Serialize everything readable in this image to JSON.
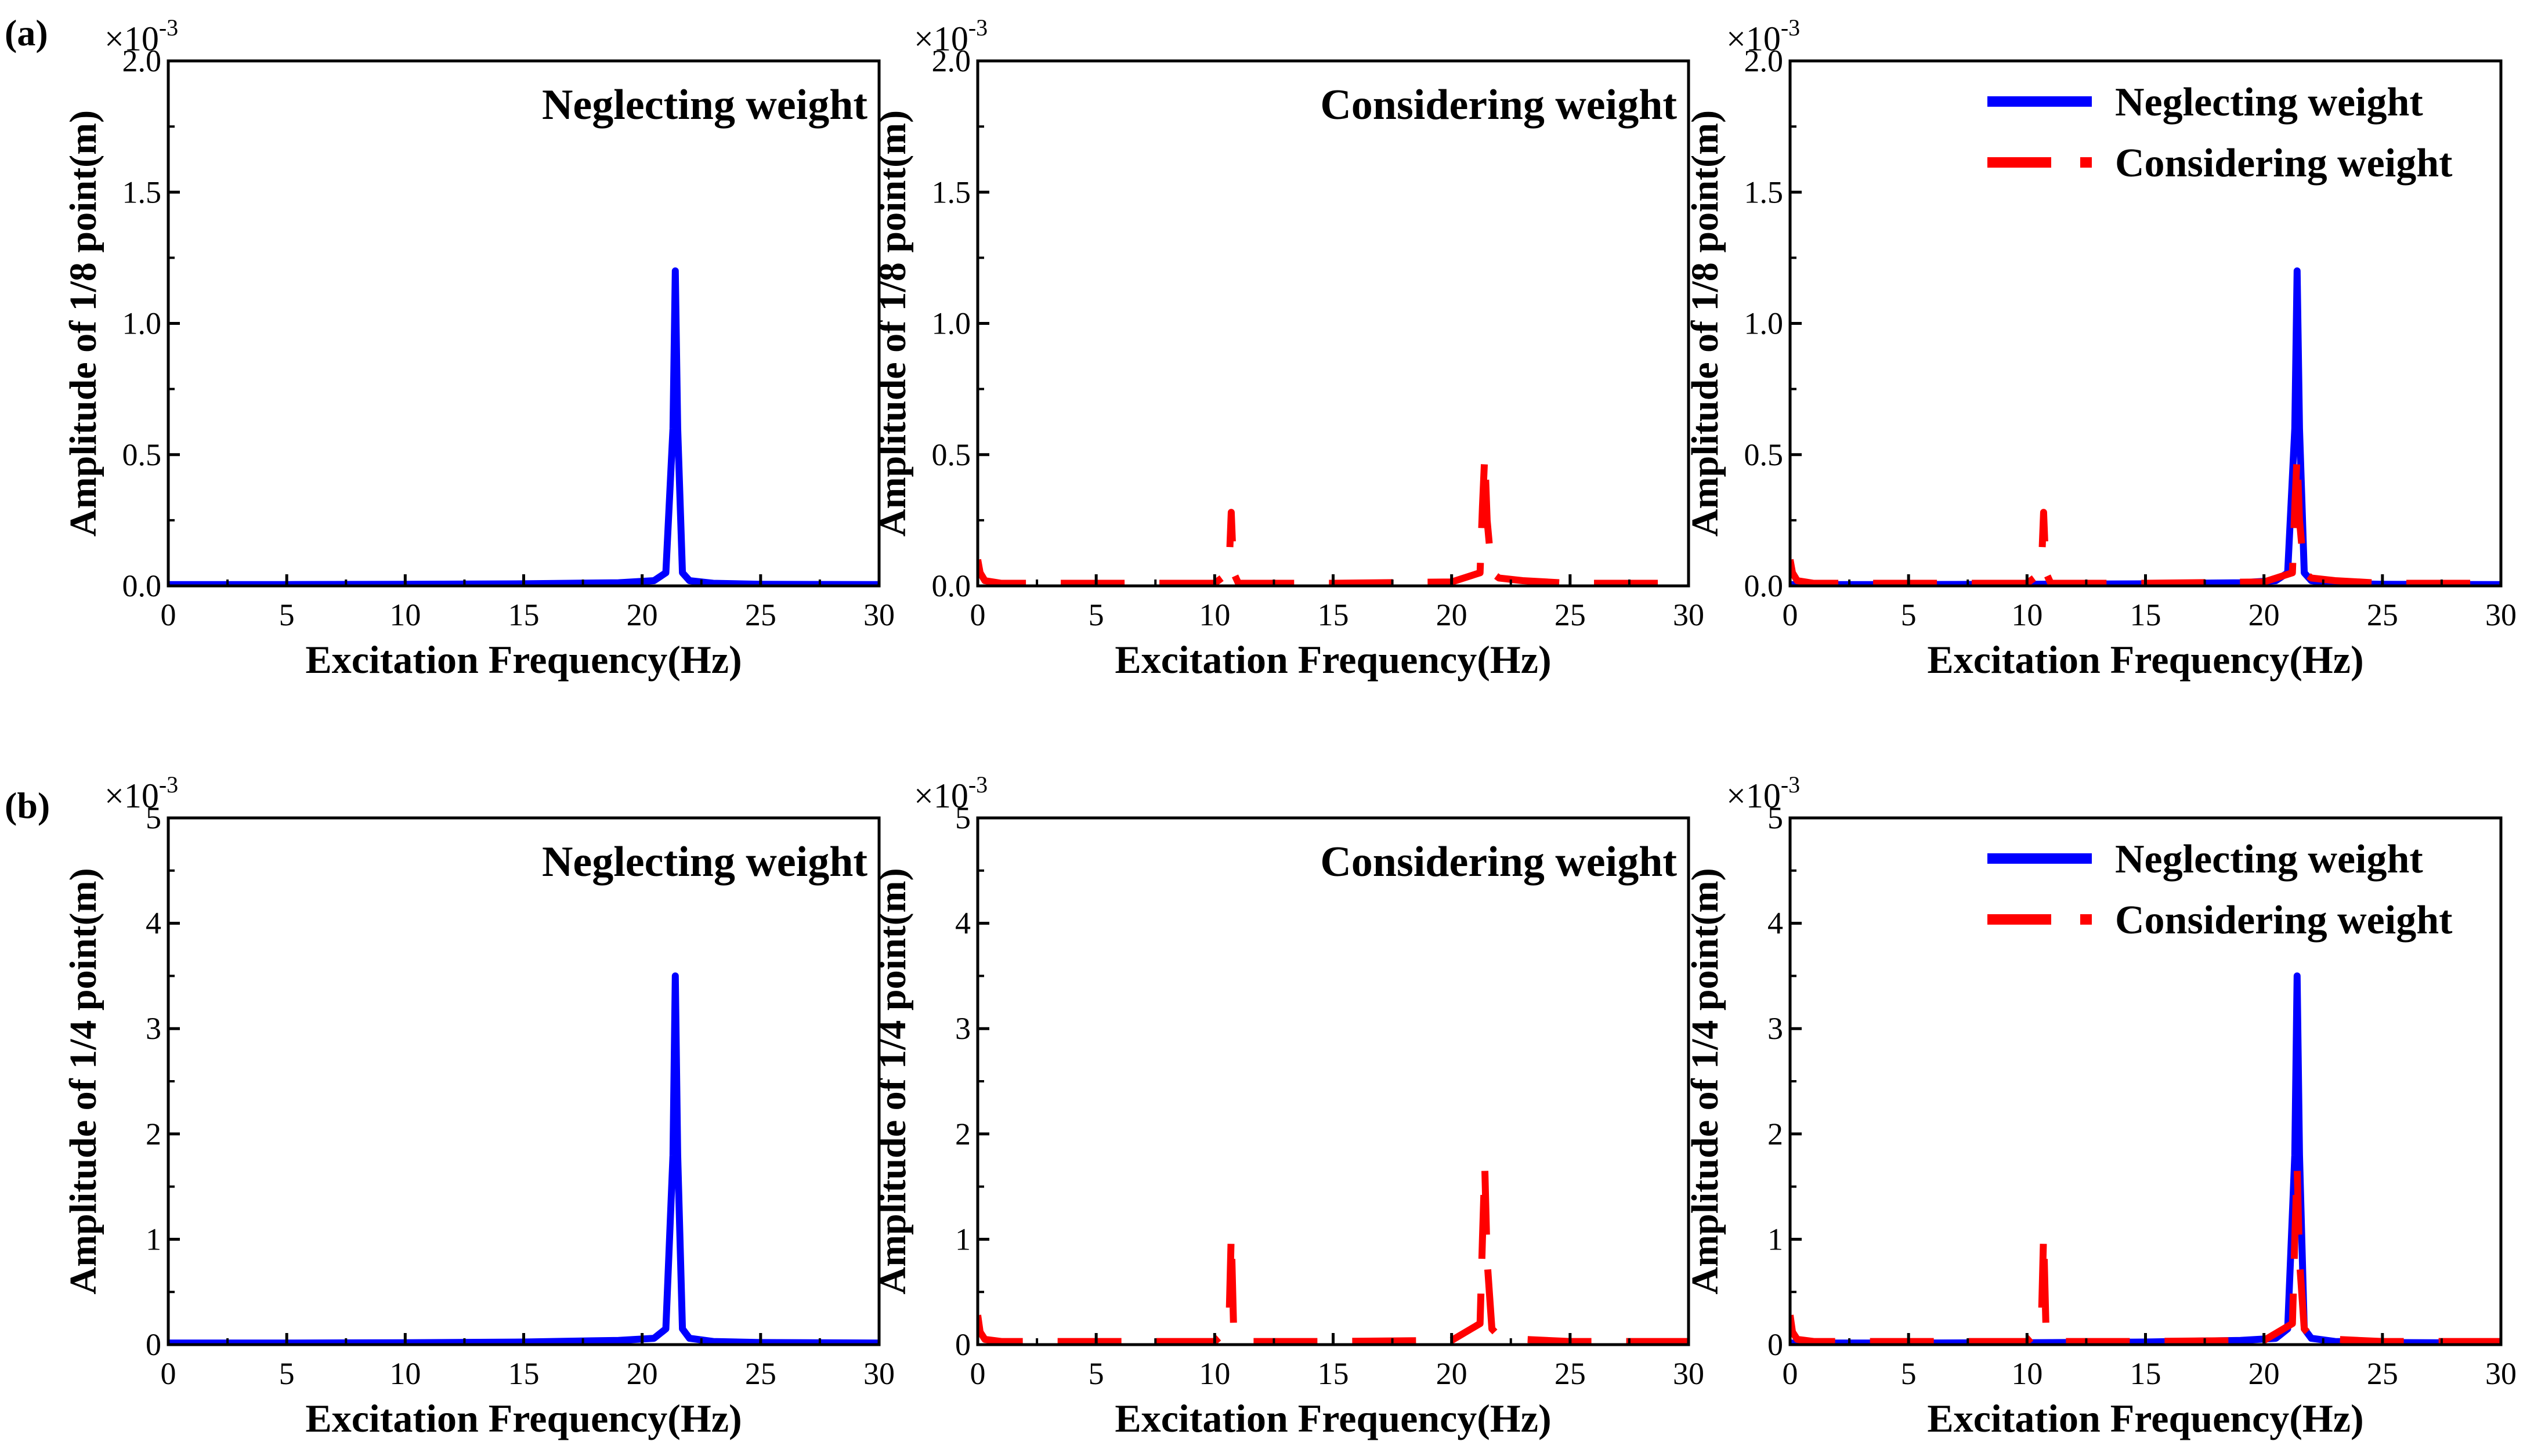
{
  "figure": {
    "row_labels": [
      "(a)",
      "(b)"
    ]
  },
  "series_styles": {
    "Neglecting weight": {
      "color": "#0000ff",
      "dash": "solid"
    },
    "Considering weight": {
      "color": "#ff0000",
      "dash": "dashed"
    }
  },
  "chart_data": [
    {
      "type": "line",
      "row": 0,
      "col": 0,
      "xlabel": "Excitation Frequency(Hz)",
      "ylabel": "Amplitude of 1/8 point(m)",
      "scale_label": "×10",
      "scale_exp": "-3",
      "xlim": [
        0,
        30
      ],
      "ylim": [
        0,
        2.0
      ],
      "xticks": [
        "0",
        "5",
        "10",
        "15",
        "20",
        "25",
        "30"
      ],
      "yticks": [
        "0.0",
        "0.5",
        "1.0",
        "1.5",
        "2.0"
      ],
      "title": "Neglecting weight",
      "series": [
        {
          "name": "Neglecting weight",
          "x": [
            0,
            5,
            10,
            15,
            19,
            20.5,
            21.0,
            21.3,
            21.4,
            21.5,
            21.7,
            22,
            23,
            25,
            30
          ],
          "y": [
            0.005,
            0.005,
            0.006,
            0.008,
            0.012,
            0.02,
            0.05,
            0.6,
            1.2,
            0.6,
            0.05,
            0.02,
            0.01,
            0.006,
            0.005
          ]
        }
      ]
    },
    {
      "type": "line",
      "row": 0,
      "col": 1,
      "xlabel": "Excitation Frequency(Hz)",
      "ylabel": "Amplitude of 1/8 point(m)",
      "scale_label": "×10",
      "scale_exp": "-3",
      "xlim": [
        0,
        30
      ],
      "ylim": [
        0,
        2.0
      ],
      "xticks": [
        "0",
        "5",
        "10",
        "15",
        "20",
        "25",
        "30"
      ],
      "yticks": [
        "0.0",
        "0.5",
        "1.0",
        "1.5",
        "2.0"
      ],
      "title": "Considering weight",
      "series": [
        {
          "name": "Considering weight",
          "x": [
            0,
            0.1,
            0.3,
            1,
            5,
            10,
            10.6,
            10.7,
            10.8,
            11,
            15,
            20,
            21.2,
            21.3,
            21.4,
            21.5,
            21.7,
            22,
            23,
            25,
            30
          ],
          "y": [
            0.1,
            0.05,
            0.02,
            0.01,
            0.01,
            0.01,
            0.05,
            0.28,
            0.05,
            0.01,
            0.01,
            0.015,
            0.05,
            0.3,
            0.5,
            0.25,
            0.05,
            0.03,
            0.02,
            0.01,
            0.01
          ]
        }
      ]
    },
    {
      "type": "line",
      "row": 0,
      "col": 2,
      "xlabel": "Excitation Frequency(Hz)",
      "ylabel": "Amplitude of 1/8 point(m)",
      "scale_label": "×10",
      "scale_exp": "-3",
      "xlim": [
        0,
        30
      ],
      "ylim": [
        0,
        2.0
      ],
      "xticks": [
        "0",
        "5",
        "10",
        "15",
        "20",
        "25",
        "30"
      ],
      "yticks": [
        "0.0",
        "0.5",
        "1.0",
        "1.5",
        "2.0"
      ],
      "legend": "top-right",
      "series": [
        {
          "name": "Neglecting weight",
          "x": [
            0,
            5,
            10,
            15,
            19,
            20.5,
            21.0,
            21.3,
            21.4,
            21.5,
            21.7,
            22,
            23,
            25,
            30
          ],
          "y": [
            0.005,
            0.005,
            0.006,
            0.008,
            0.012,
            0.02,
            0.05,
            0.6,
            1.2,
            0.6,
            0.05,
            0.02,
            0.01,
            0.006,
            0.005
          ]
        },
        {
          "name": "Considering weight",
          "x": [
            0,
            0.1,
            0.3,
            1,
            5,
            10,
            10.6,
            10.7,
            10.8,
            11,
            15,
            20,
            21.2,
            21.3,
            21.4,
            21.5,
            21.7,
            22,
            23,
            25,
            30
          ],
          "y": [
            0.1,
            0.05,
            0.02,
            0.01,
            0.01,
            0.01,
            0.05,
            0.28,
            0.05,
            0.01,
            0.01,
            0.015,
            0.05,
            0.3,
            0.5,
            0.25,
            0.05,
            0.03,
            0.02,
            0.01,
            0.01
          ]
        }
      ]
    },
    {
      "type": "line",
      "row": 1,
      "col": 0,
      "xlabel": "Excitation Frequency(Hz)",
      "ylabel": "Amplitude of 1/4 point(m)",
      "scale_label": "×10",
      "scale_exp": "-3",
      "xlim": [
        0,
        30
      ],
      "ylim": [
        0,
        5
      ],
      "xticks": [
        "0",
        "5",
        "10",
        "15",
        "20",
        "25",
        "30"
      ],
      "yticks": [
        "0",
        "1",
        "2",
        "3",
        "4",
        "5"
      ],
      "title": "Neglecting weight",
      "series": [
        {
          "name": "Neglecting weight",
          "x": [
            0,
            5,
            10,
            15,
            19,
            20.5,
            21.0,
            21.3,
            21.4,
            21.5,
            21.7,
            22,
            23,
            25,
            30
          ],
          "y": [
            0.015,
            0.015,
            0.018,
            0.025,
            0.04,
            0.06,
            0.15,
            1.8,
            3.5,
            1.8,
            0.15,
            0.06,
            0.03,
            0.02,
            0.015
          ]
        }
      ]
    },
    {
      "type": "line",
      "row": 1,
      "col": 1,
      "xlabel": "Excitation Frequency(Hz)",
      "ylabel": "Amplitude of 1/4 point(m)",
      "scale_label": "×10",
      "scale_exp": "-3",
      "xlim": [
        0,
        30
      ],
      "ylim": [
        0,
        5
      ],
      "xticks": [
        "0",
        "5",
        "10",
        "15",
        "20",
        "25",
        "30"
      ],
      "yticks": [
        "0",
        "1",
        "2",
        "3",
        "4",
        "5"
      ],
      "title": "Considering weight",
      "series": [
        {
          "name": "Considering weight",
          "x": [
            0,
            0.1,
            0.3,
            1,
            5,
            10,
            10.6,
            10.7,
            10.8,
            11,
            15,
            20,
            21.2,
            21.3,
            21.4,
            21.5,
            21.7,
            22,
            23,
            25,
            30
          ],
          "y": [
            0.28,
            0.12,
            0.05,
            0.03,
            0.03,
            0.03,
            0.15,
            1.05,
            0.15,
            0.03,
            0.03,
            0.04,
            0.2,
            1.0,
            1.7,
            0.8,
            0.15,
            0.08,
            0.05,
            0.03,
            0.03
          ]
        }
      ]
    },
    {
      "type": "line",
      "row": 1,
      "col": 2,
      "xlabel": "Excitation Frequency(Hz)",
      "ylabel": "Amplitude of 1/4 point(m)",
      "scale_label": "×10",
      "scale_exp": "-3",
      "xlim": [
        0,
        30
      ],
      "ylim": [
        0,
        5
      ],
      "xticks": [
        "0",
        "5",
        "10",
        "15",
        "20",
        "25",
        "30"
      ],
      "yticks": [
        "0",
        "1",
        "2",
        "3",
        "4",
        "5"
      ],
      "legend": "top-right",
      "series": [
        {
          "name": "Neglecting weight",
          "x": [
            0,
            5,
            10,
            15,
            19,
            20.5,
            21.0,
            21.3,
            21.4,
            21.5,
            21.7,
            22,
            23,
            25,
            30
          ],
          "y": [
            0.015,
            0.015,
            0.018,
            0.025,
            0.04,
            0.06,
            0.15,
            1.8,
            3.5,
            1.8,
            0.15,
            0.06,
            0.03,
            0.02,
            0.015
          ]
        },
        {
          "name": "Considering weight",
          "x": [
            0,
            0.1,
            0.3,
            1,
            5,
            10,
            10.6,
            10.7,
            10.8,
            11,
            15,
            20,
            21.2,
            21.3,
            21.4,
            21.5,
            21.7,
            22,
            23,
            25,
            30
          ],
          "y": [
            0.28,
            0.12,
            0.05,
            0.03,
            0.03,
            0.03,
            0.15,
            1.05,
            0.15,
            0.03,
            0.03,
            0.04,
            0.2,
            1.0,
            1.7,
            0.8,
            0.15,
            0.08,
            0.05,
            0.03,
            0.03
          ]
        }
      ]
    }
  ]
}
